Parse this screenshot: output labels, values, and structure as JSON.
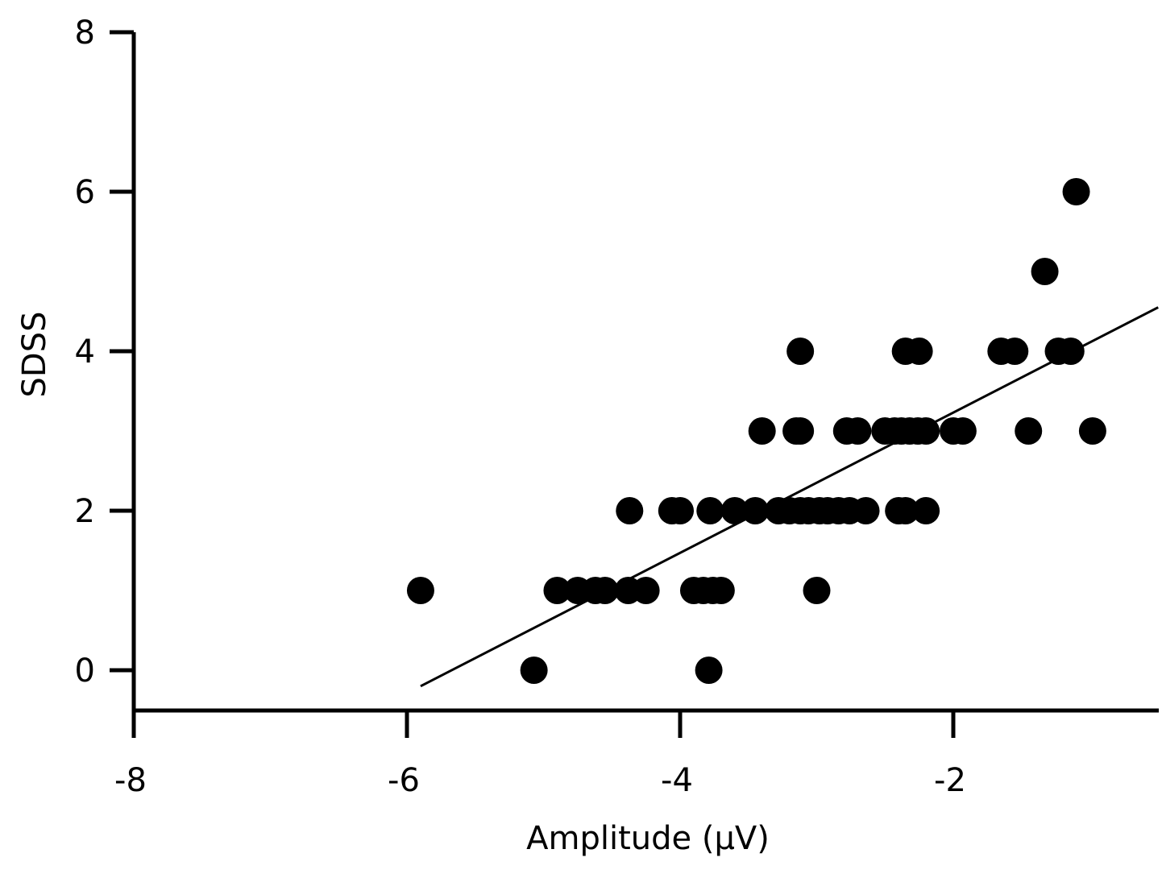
{
  "chart_data": {
    "type": "scatter",
    "title": "",
    "xlabel": "Amplitude (μV)",
    "ylabel": "SDSS",
    "xlim": [
      -8,
      -0.5
    ],
    "ylim": [
      -0.5,
      8
    ],
    "xticks": [
      -8,
      -6,
      -4,
      -2
    ],
    "yticks": [
      0,
      2,
      4,
      6,
      8
    ],
    "xtick_labels": [
      "-8",
      "-6",
      "-4",
      "-2"
    ],
    "ytick_labels": [
      "0",
      "2",
      "4",
      "6",
      "8"
    ],
    "grid": false,
    "colors": {
      "points": "#000000",
      "axes": "#000000",
      "fit_line": "#000000"
    },
    "series": [
      {
        "points": [
          [
            -5.9,
            1
          ],
          [
            -5.07,
            0
          ],
          [
            -4.9,
            1
          ],
          [
            -4.75,
            1
          ],
          [
            -4.62,
            1
          ],
          [
            -4.55,
            1
          ],
          [
            -4.38,
            1
          ],
          [
            -4.25,
            1
          ],
          [
            -4.37,
            2
          ],
          [
            -4.06,
            2
          ],
          [
            -4.0,
            2
          ],
          [
            -3.9,
            1
          ],
          [
            -3.83,
            1
          ],
          [
            -3.76,
            1
          ],
          [
            -3.7,
            1
          ],
          [
            -3.79,
            0
          ],
          [
            -3.78,
            2
          ],
          [
            -3.6,
            2
          ],
          [
            -3.45,
            2
          ],
          [
            -3.4,
            3
          ],
          [
            -3.28,
            2
          ],
          [
            -3.2,
            2
          ],
          [
            -3.12,
            2
          ],
          [
            -3.06,
            2
          ],
          [
            -2.98,
            2
          ],
          [
            -2.92,
            2
          ],
          [
            -2.84,
            2
          ],
          [
            -2.76,
            2
          ],
          [
            -2.64,
            2
          ],
          [
            -3.0,
            1
          ],
          [
            -3.15,
            3
          ],
          [
            -3.12,
            3
          ],
          [
            -3.12,
            4
          ],
          [
            -2.78,
            3
          ],
          [
            -2.7,
            3
          ],
          [
            -2.5,
            3
          ],
          [
            -2.43,
            3
          ],
          [
            -2.38,
            3
          ],
          [
            -2.32,
            3
          ],
          [
            -2.26,
            3
          ],
          [
            -2.2,
            3
          ],
          [
            -2.0,
            3
          ],
          [
            -1.93,
            3
          ],
          [
            -2.4,
            2
          ],
          [
            -2.35,
            2
          ],
          [
            -2.2,
            2
          ],
          [
            -2.35,
            4
          ],
          [
            -2.25,
            4
          ],
          [
            -1.65,
            4
          ],
          [
            -1.55,
            4
          ],
          [
            -1.33,
            5
          ],
          [
            -1.45,
            3
          ],
          [
            -1.23,
            4
          ],
          [
            -1.14,
            4
          ],
          [
            -1.1,
            6
          ],
          [
            -0.98,
            3
          ]
        ]
      }
    ],
    "fit_line": {
      "x": [
        -5.9,
        -0.5
      ],
      "y": [
        -0.2,
        4.55
      ]
    }
  }
}
